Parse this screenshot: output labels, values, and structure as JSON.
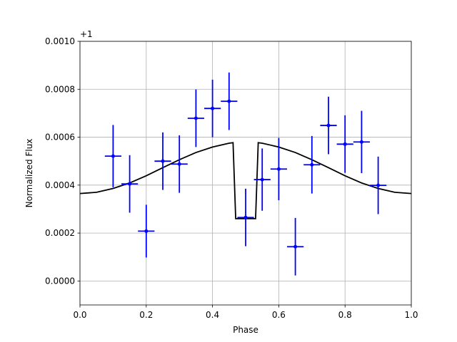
{
  "chart_data": {
    "type": "errorbar",
    "xlabel": "Phase",
    "ylabel": "Normalized Flux",
    "y_offset_label": "+1",
    "xlim": [
      0,
      1
    ],
    "ylim": [
      -0.0001,
      0.001
    ],
    "xticks": [
      {
        "value": 0,
        "label": "0.0"
      },
      0.2,
      0.4,
      0.6,
      0.8,
      {
        "value": 1,
        "label": "1.0"
      }
    ],
    "yticks": [
      {
        "value": 0,
        "label": "0.0000"
      },
      {
        "value": 0.0002,
        "label": "0.0002"
      },
      {
        "value": 0.0004,
        "label": "0.0004"
      },
      {
        "value": 0.0006,
        "label": "0.0006"
      },
      {
        "value": 0.0008,
        "label": "0.0008"
      },
      {
        "value": 0.001,
        "label": "0.0010"
      }
    ],
    "grid": true,
    "points": {
      "color": "#0000ff",
      "x": [
        0.1,
        0.15,
        0.2,
        0.25,
        0.3,
        0.35,
        0.4,
        0.45,
        0.5,
        0.55,
        0.6,
        0.65,
        0.7,
        0.75,
        0.8,
        0.85,
        0.9
      ],
      "values": [
        0.000521,
        0.000405,
        0.000208,
        0.0005,
        0.000488,
        0.000679,
        0.00072,
        0.00075,
        0.000265,
        0.000423,
        0.000467,
        0.000143,
        0.000485,
        0.000649,
        0.000571,
        0.00058,
        0.000399
      ],
      "yerr": [
        0.00013,
        0.00012,
        0.00011,
        0.00012,
        0.00012,
        0.00012,
        0.00012,
        0.00012,
        0.00012,
        0.00013,
        0.00013,
        0.00012,
        0.00012,
        0.00012,
        0.00012,
        0.00013,
        0.00012
      ],
      "xerr": [
        0.025,
        0.025,
        0.025,
        0.025,
        0.025,
        0.025,
        0.025,
        0.025,
        0.025,
        0.025,
        0.025,
        0.025,
        0.025,
        0.025,
        0.025,
        0.025,
        0.025
      ]
    },
    "model": {
      "color": "#000000",
      "x": [
        0,
        0.05,
        0.1,
        0.15,
        0.2,
        0.25,
        0.3,
        0.35,
        0.4,
        0.45,
        0.462,
        0.47,
        0.53,
        0.538,
        0.55,
        0.6,
        0.65,
        0.7,
        0.75,
        0.8,
        0.85,
        0.9,
        0.95,
        1
      ],
      "values": [
        0.000365,
        0.00037,
        0.000386,
        0.000409,
        0.000439,
        0.000473,
        0.000506,
        0.000536,
        0.000559,
        0.000575,
        0.000577,
        0.00026,
        0.00026,
        0.000577,
        0.000575,
        0.000559,
        0.000536,
        0.000506,
        0.000473,
        0.000439,
        0.000409,
        0.000386,
        0.00037,
        0.000365
      ]
    }
  }
}
